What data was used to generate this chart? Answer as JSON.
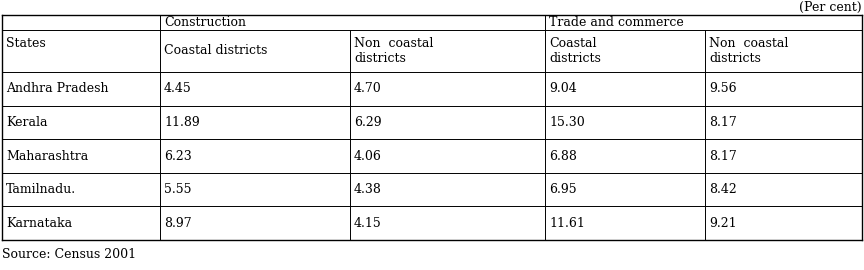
{
  "title_right": "(Per cent)",
  "source": "Source: Census 2001",
  "col_groups": [
    "Construction",
    "Trade and commerce"
  ],
  "col_subheaders": [
    "Coastal districts",
    "Non  coastal\ndistricts",
    "Coastal\ndistricts",
    "Non  coastal\ndistricts"
  ],
  "row_header": "States",
  "rows": [
    {
      "state": "Andhra Pradesh",
      "values": [
        "4.45",
        "4.70",
        "9.04",
        "9.56"
      ]
    },
    {
      "state": "Kerala",
      "values": [
        "11.89",
        "6.29",
        "15.30",
        "8.17"
      ]
    },
    {
      "state": "Maharashtra",
      "values": [
        "6.23",
        "4.06",
        "6.88",
        "8.17"
      ]
    },
    {
      "state": "Tamilnadu.",
      "values": [
        "5.55",
        "4.38",
        "6.95",
        "8.42"
      ]
    },
    {
      "state": "Karnataka",
      "values": [
        "8.97",
        "4.15",
        "11.61",
        "9.21"
      ]
    }
  ],
  "bg_color": "#ffffff",
  "line_color": "#000000",
  "font_size": 9.0
}
